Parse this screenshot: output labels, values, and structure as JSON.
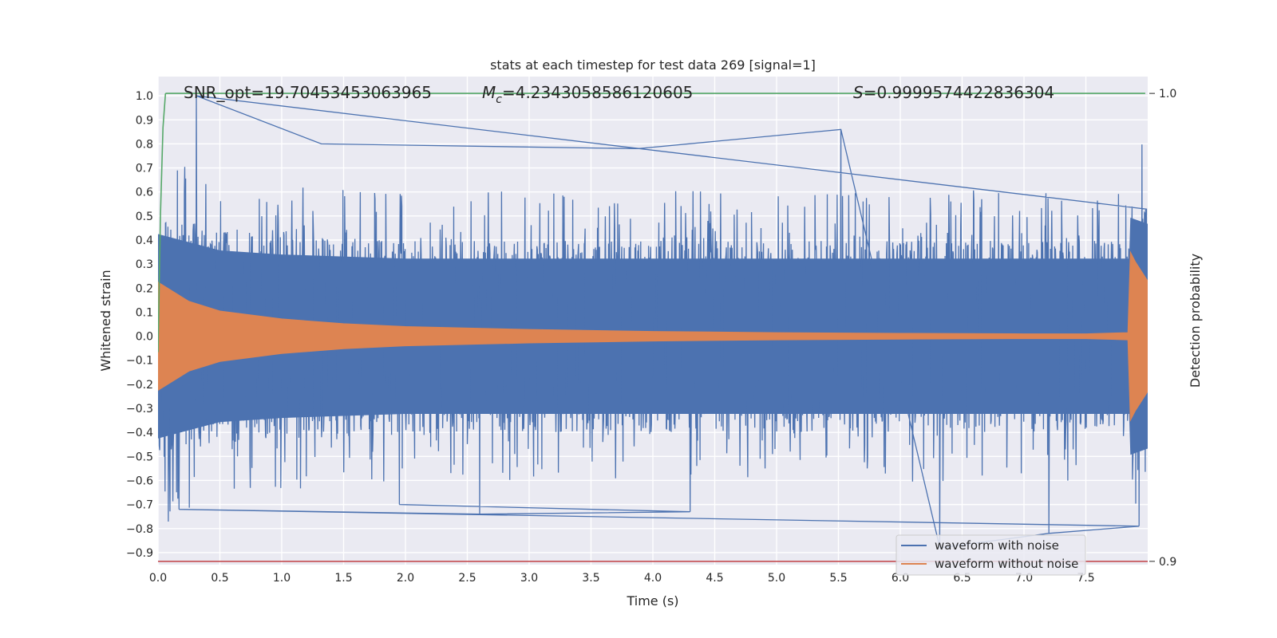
{
  "chart_data": {
    "type": "line",
    "title": "stats at each timestep for test data 269 [signal=1]",
    "xlabel": "Time (s)",
    "ylabel": "Whitened strain",
    "y2label": "Detection probability",
    "xlim": [
      0.0,
      8.0
    ],
    "ylim": [
      -0.95,
      1.08
    ],
    "y2lim": [
      0.8993,
      1.0036
    ],
    "x_ticks": [
      "0.0",
      "0.5",
      "1.0",
      "1.5",
      "2.0",
      "2.5",
      "3.0",
      "3.5",
      "4.0",
      "4.5",
      "5.0",
      "5.5",
      "6.0",
      "6.5",
      "7.0",
      "7.5"
    ],
    "y_ticks": [
      "−0.9",
      "−0.8",
      "−0.7",
      "−0.6",
      "−0.5",
      "−0.4",
      "−0.3",
      "−0.2",
      "−0.1",
      "0.0",
      "0.1",
      "0.2",
      "0.3",
      "0.4",
      "0.5",
      "0.6",
      "0.7",
      "0.8",
      "0.9",
      "1.0"
    ],
    "y2_ticks": [
      "0.9",
      "1.0"
    ],
    "grid": true,
    "legend_placement": "lower-right",
    "annotations": {
      "snr": "SNR_opt=19.70453453063965",
      "mc_symbol": "M",
      "mc_sub": "c",
      "mc_value": "=4.2343058586120605",
      "s_symbol": "S",
      "s_value": "=0.9999574422836304"
    },
    "series": [
      {
        "name": "waveform with noise",
        "color": "#4c72b0",
        "description_envelope": {
          "x": [
            0.0,
            0.5,
            1.0,
            2.0,
            3.0,
            4.0,
            5.0,
            6.0,
            7.0,
            7.85,
            7.86,
            8.0
          ],
          "typical_max": [
            0.5,
            0.42,
            0.4,
            0.38,
            0.38,
            0.38,
            0.38,
            0.38,
            0.38,
            0.38,
            0.58,
            0.55
          ],
          "typical_min": [
            -0.5,
            -0.42,
            -0.4,
            -0.38,
            -0.38,
            -0.38,
            -0.38,
            -0.38,
            -0.38,
            -0.38,
            -0.58,
            -0.55
          ]
        },
        "extremes": [
          {
            "x": 0.31,
            "y": 1.0
          },
          {
            "x": 1.32,
            "y": 0.8
          },
          {
            "x": 3.88,
            "y": 0.78
          },
          {
            "x": 5.52,
            "y": 0.86
          },
          {
            "x": 6.32,
            "y": -0.88
          },
          {
            "x": 7.2,
            "y": -0.82
          },
          {
            "x": 7.93,
            "y": -0.79
          },
          {
            "x": 0.17,
            "y": -0.72
          },
          {
            "x": 2.6,
            "y": -0.74
          },
          {
            "x": 4.3,
            "y": -0.73
          },
          {
            "x": 1.95,
            "y": -0.7
          }
        ]
      },
      {
        "name": "waveform without noise",
        "color": "#dd8452",
        "envelope": {
          "x": [
            0.0,
            0.25,
            0.5,
            1.0,
            1.5,
            2.0,
            3.0,
            4.0,
            5.0,
            6.0,
            7.0,
            7.5,
            7.84,
            7.86,
            7.9,
            8.0
          ],
          "upper": [
            0.225,
            0.145,
            0.105,
            0.072,
            0.052,
            0.04,
            0.028,
            0.02,
            0.015,
            0.012,
            0.01,
            0.01,
            0.015,
            0.35,
            0.31,
            0.23
          ],
          "lower": [
            -0.225,
            -0.145,
            -0.105,
            -0.072,
            -0.052,
            -0.04,
            -0.028,
            -0.02,
            -0.015,
            -0.012,
            -0.01,
            -0.01,
            -0.015,
            -0.35,
            -0.31,
            -0.23
          ]
        }
      },
      {
        "axis": "right",
        "color": "#55a868",
        "x": [
          0.0,
          0.02,
          0.04,
          0.06,
          0.065,
          7.98
        ],
        "y": [
          0.9447,
          0.9743,
          0.9927,
          0.9999,
          1.0,
          1.0
        ]
      },
      {
        "axis": "right",
        "color": "#c44e52",
        "x": [
          -0.02,
          8.0
        ],
        "y": [
          0.9,
          0.9
        ]
      }
    ]
  }
}
